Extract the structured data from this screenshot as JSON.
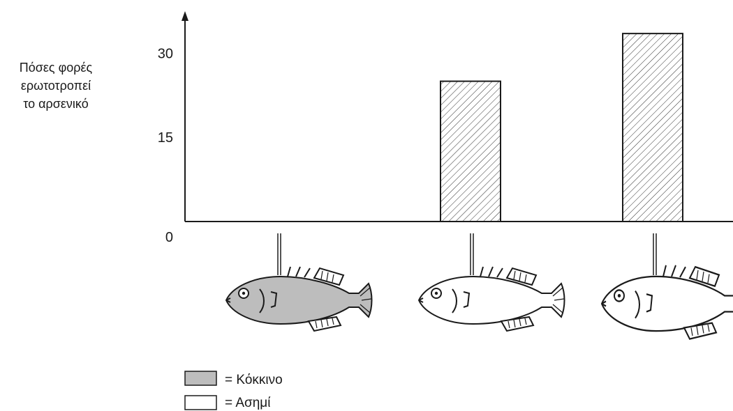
{
  "chart_data": {
    "type": "bar",
    "title": "",
    "xlabel": "",
    "ylabel_lines": [
      "Πόσες φορές",
      "ερωτοτροπεί",
      "το αρσενικό"
    ],
    "ylim": [
      0,
      36
    ],
    "yticks": [
      0,
      15,
      30
    ],
    "ytick_labels": [
      "0",
      "15",
      "30"
    ],
    "categories": [
      "red-fish",
      "silver-fish",
      "silver-fish-swollen"
    ],
    "category_colors": [
      "Κόκκινο",
      "Ασημί",
      "Ασημί"
    ],
    "values": [
      0,
      25,
      33.5
    ],
    "bar_fill": "hatched",
    "legend": [
      {
        "label": "= Κόκκινο",
        "swatch": "#bdbdbd"
      },
      {
        "label": "= Ασημί",
        "swatch": "#ffffff"
      }
    ],
    "legend_position": "bottom-left",
    "grid": false
  },
  "colors": {
    "axis": "#1a1a1a",
    "bar_stroke": "#1a1a1a",
    "hatch": "#333333",
    "red_fish_fill": "#bdbdbd",
    "silver_fish_fill": "#ffffff"
  },
  "icons": [
    "red-fish-icon",
    "silver-fish-icon",
    "silver-fish-swollen-icon"
  ]
}
